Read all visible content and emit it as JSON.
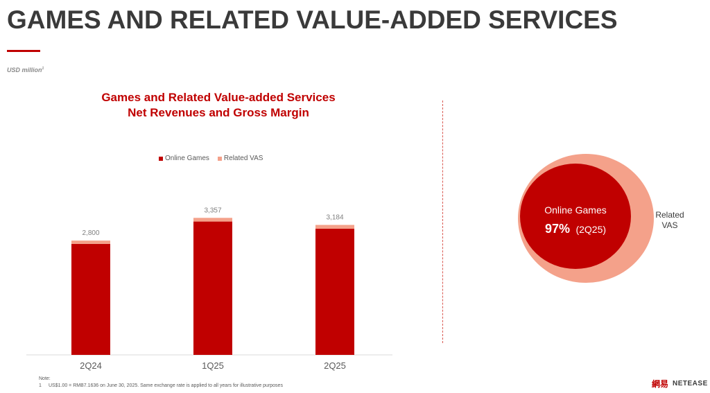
{
  "page": {
    "title": "GAMES AND RELATED VALUE-ADDED SERVICES",
    "unit_label": "USD million",
    "unit_footnote_mark": "1"
  },
  "chart_data": {
    "type": "bar",
    "stacked": true,
    "title_lines": [
      "Games and Related Value-added Services",
      "Net Revenues and Gross Margin"
    ],
    "categories": [
      "2Q24",
      "1Q25",
      "2Q25"
    ],
    "series": [
      {
        "name": "Online Games",
        "color": "#c00000",
        "values": [
          2720,
          3267,
          3090
        ]
      },
      {
        "name": "Related VAS",
        "color": "#f4a18a",
        "values": [
          80,
          90,
          94
        ]
      }
    ],
    "totals": [
      "2,800",
      "3,357",
      "3,184"
    ],
    "ylim": [
      0,
      3600
    ],
    "legend_position": "top-center"
  },
  "breakdown": {
    "inner_label": "Online Games",
    "inner_percent": "97%",
    "inner_period": "(2Q25)",
    "outer_label_line1": "Related",
    "outer_label_line2": "VAS",
    "inner_color": "#c00000",
    "outer_color": "#f4a18a"
  },
  "note": {
    "heading": "Note:",
    "number": "1",
    "text": "US$1.00 = RMB7.1636 on June 30, 2025. Same exchange rate is applied to all years for illustrative purposes"
  },
  "logo": {
    "glyph": "網易",
    "word": "NETEASE"
  }
}
